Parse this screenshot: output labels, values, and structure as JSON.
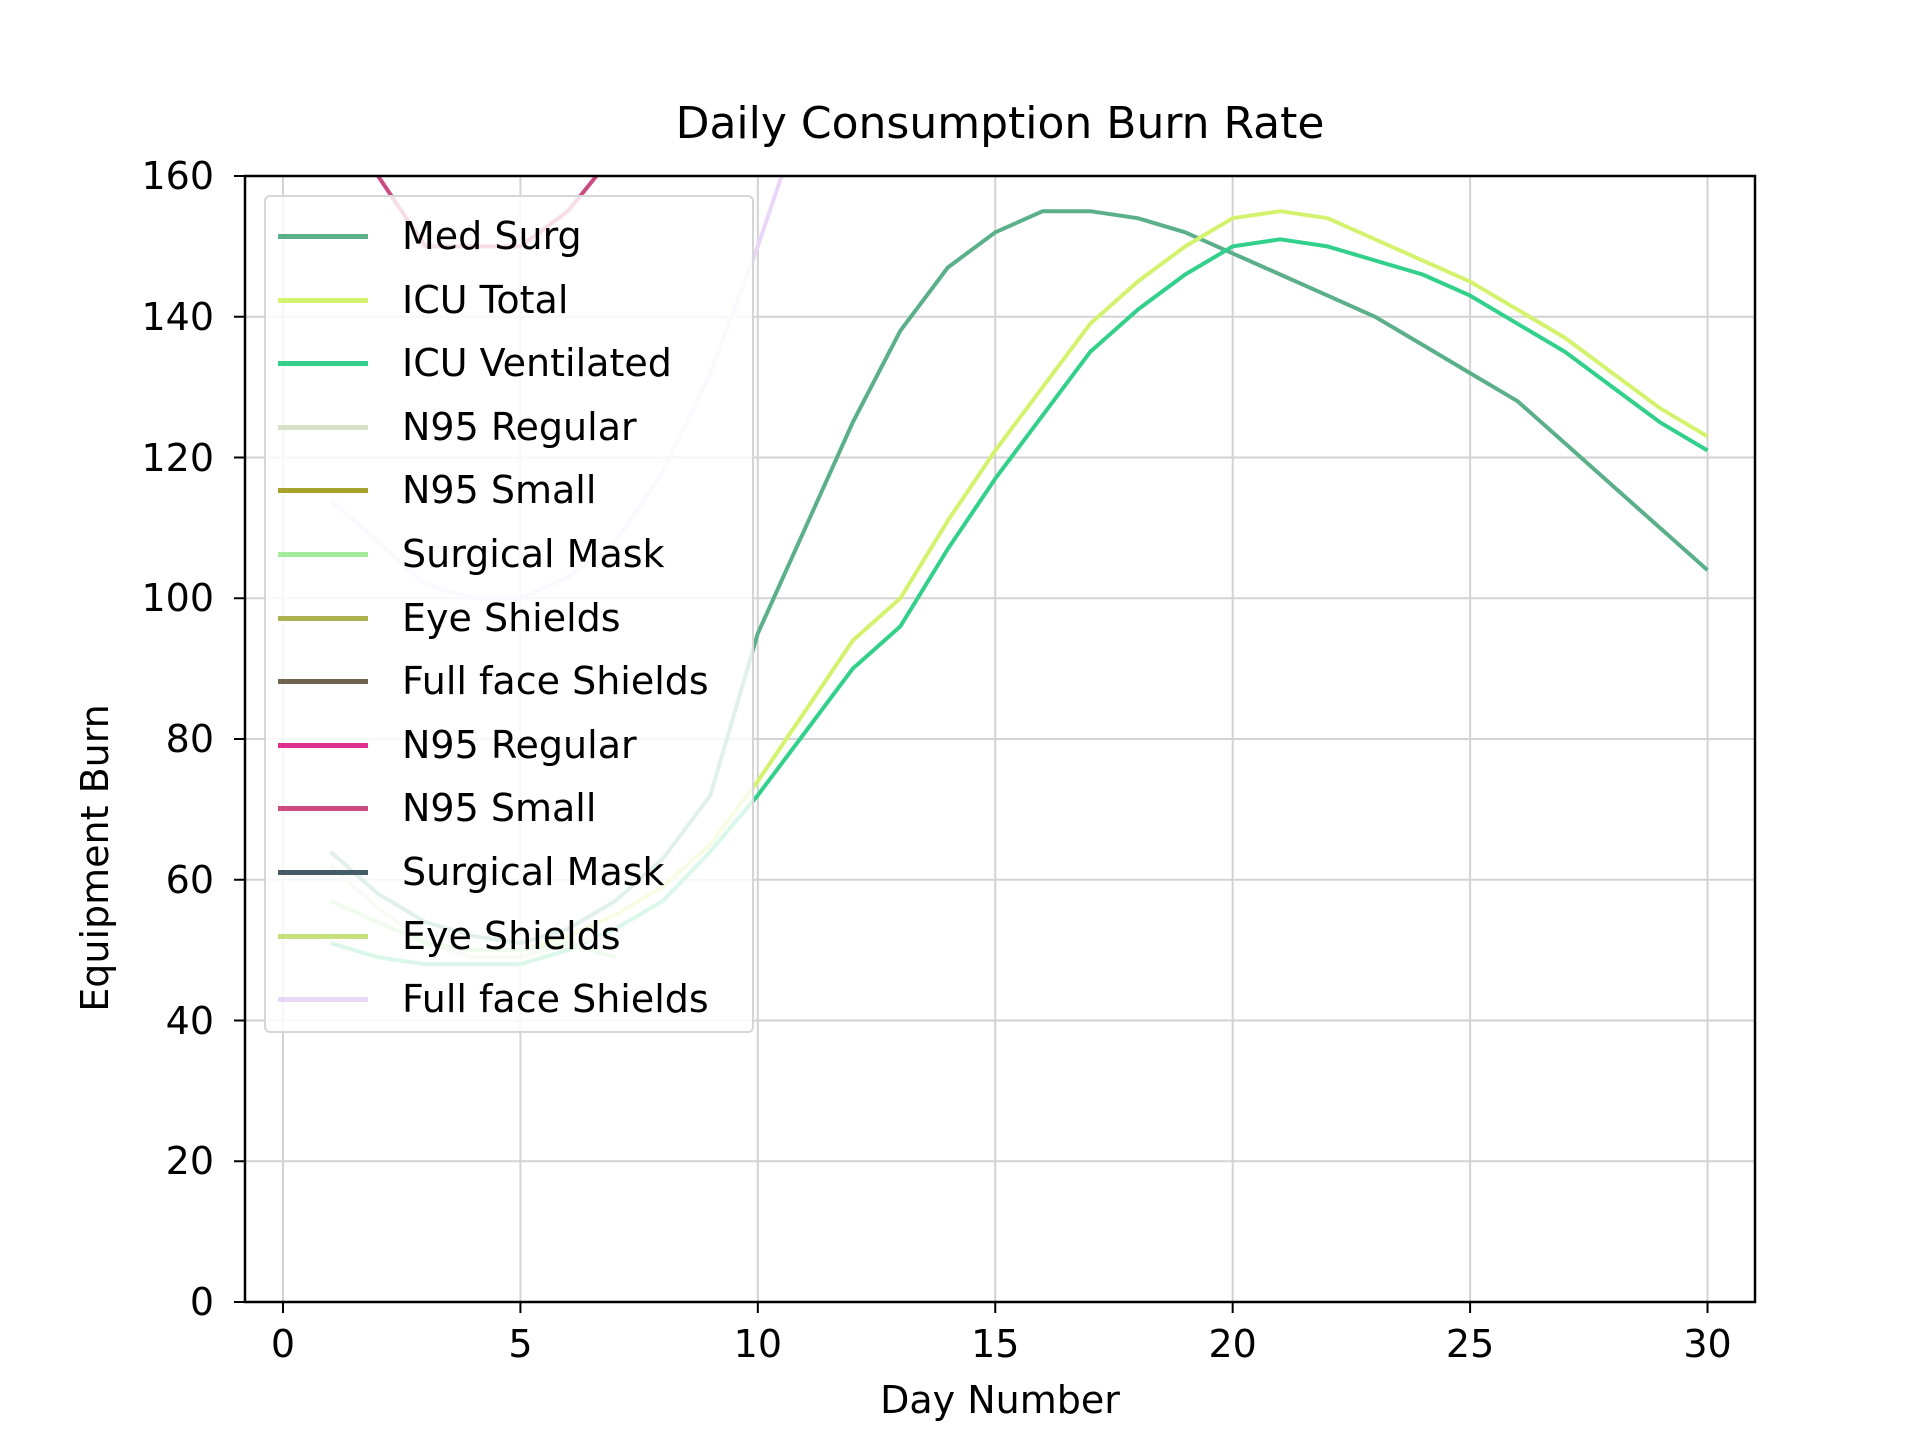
{
  "chart_data": {
    "type": "line",
    "title": "Daily Consumption Burn Rate",
    "xlabel": "Day Number",
    "ylabel": "Equipment Burn",
    "xlim": [
      -0.8,
      31.0
    ],
    "ylim": [
      0,
      160
    ],
    "x_ticks": [
      "0",
      "5",
      "10",
      "15",
      "20",
      "25",
      "30"
    ],
    "y_ticks": [
      "0",
      "20",
      "40",
      "60",
      "80",
      "100",
      "120",
      "140",
      "160"
    ],
    "grid": true,
    "legend_position": "upper-left",
    "series": [
      {
        "name": "Med Surg",
        "color": "#5bb08a",
        "x": [
          1,
          2,
          3,
          4,
          5,
          6,
          7,
          8,
          9,
          10,
          11,
          12,
          13,
          14,
          15,
          16,
          17,
          18,
          19,
          20,
          21,
          22,
          23,
          24,
          25,
          26,
          27,
          28,
          29,
          30
        ],
        "y": [
          64,
          58,
          54,
          52,
          51,
          53,
          57,
          63,
          72,
          95,
          110,
          125,
          138,
          147,
          152,
          155,
          155,
          154,
          152,
          149,
          146,
          143,
          140,
          136,
          132,
          128,
          122,
          116,
          110,
          104
        ]
      },
      {
        "name": "ICU Total",
        "color": "#d3f26e",
        "x": [
          1,
          2,
          3,
          4,
          5,
          6,
          7,
          8,
          9,
          10,
          11,
          12,
          13,
          14,
          15,
          16,
          17,
          18,
          19,
          20,
          21,
          22,
          23,
          24,
          25,
          26,
          27,
          28,
          29,
          30
        ],
        "y": [
          57,
          54,
          51,
          50,
          50,
          52,
          55,
          59,
          65,
          74,
          84,
          94,
          100,
          111,
          121,
          130,
          139,
          145,
          150,
          154,
          155,
          154,
          151,
          148,
          145,
          141,
          137,
          132,
          127,
          123
        ]
      },
      {
        "name": "ICU Ventilated",
        "color": "#33d08c",
        "x": [
          1,
          2,
          3,
          4,
          5,
          6,
          7,
          8,
          9,
          10,
          11,
          12,
          13,
          14,
          15,
          16,
          17,
          18,
          19,
          20,
          21,
          22,
          23,
          24,
          25,
          26,
          27,
          28,
          29,
          30
        ],
        "y": [
          51,
          49,
          48,
          48,
          48,
          50,
          53,
          57,
          64,
          72,
          81,
          90,
          96,
          107,
          117,
          126,
          135,
          141,
          146,
          150,
          151,
          150,
          148,
          146,
          143,
          139,
          135,
          130,
          125,
          121
        ]
      },
      {
        "name": "N95 Regular",
        "color": "#d8e0c8",
        "x": [
          1,
          2,
          3,
          4,
          5,
          6,
          7
        ],
        "y": [
          62,
          56,
          51,
          49,
          49,
          51,
          52
        ]
      },
      {
        "name": "N95 Small",
        "color": "#a7a22c",
        "x": [],
        "y": []
      },
      {
        "name": "Surgical Mask",
        "color": "#a4ec9c",
        "x": [
          1,
          2,
          3,
          4,
          5,
          6,
          7
        ],
        "y": [
          57,
          54,
          51,
          50,
          50,
          51,
          49
        ]
      },
      {
        "name": "Eye Shields",
        "color": "#adb04e",
        "x": [],
        "y": []
      },
      {
        "name": "Full face Shields",
        "color": "#6f6350",
        "x": [],
        "y": []
      },
      {
        "name": "N95 Regular",
        "color": "#e02e8e",
        "x": [],
        "y": []
      },
      {
        "name": "N95 Small",
        "color": "#cb4a80",
        "x": [
          2,
          3,
          4,
          5,
          6,
          6.6
        ],
        "y": [
          160,
          150,
          150,
          150,
          155,
          160
        ]
      },
      {
        "name": "Surgical Mask",
        "color": "#465b68",
        "x": [],
        "y": []
      },
      {
        "name": "Eye Shields",
        "color": "#c6e07c",
        "x": [],
        "y": []
      },
      {
        "name": "Full face Shields",
        "color": "#ead6f7",
        "x": [
          1,
          2,
          3,
          4,
          5,
          6,
          7,
          8,
          9,
          10,
          10.5
        ],
        "y": [
          114,
          108,
          102,
          100,
          100,
          103,
          108,
          118,
          132,
          150,
          160
        ]
      }
    ]
  }
}
